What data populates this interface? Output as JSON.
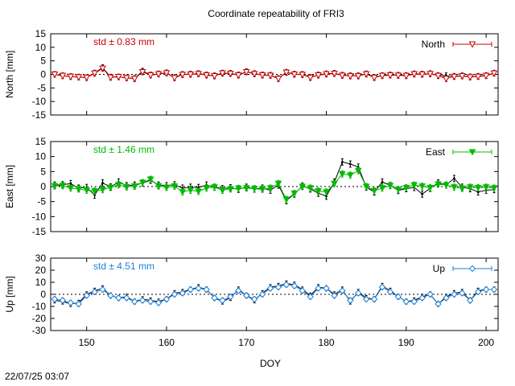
{
  "title": "Coordinate repeatability of FRI3",
  "xlabel": "DOY",
  "timestamp": "22/07/25 03:07",
  "x_ticks": [
    150,
    160,
    170,
    180,
    190,
    200
  ],
  "xlim": [
    145.5,
    201.5
  ],
  "colors": {
    "raw": "#000000",
    "north": "#cc0000",
    "east": "#00bb00",
    "up": "#1f7fd8"
  },
  "chart_data": [
    {
      "type": "line",
      "panel": "north",
      "ylabel": "North [mm]",
      "ylim": [
        -15,
        15
      ],
      "y_ticks": [
        15,
        10,
        5,
        0,
        -5,
        -10,
        -15
      ],
      "legend": "North",
      "legend_position": "top-right",
      "std_label": "std ± 0.83 mm",
      "marker": "triangle-down-open",
      "x": [
        146,
        147,
        148,
        149,
        150,
        151,
        152,
        153,
        154,
        155,
        156,
        157,
        158,
        159,
        160,
        161,
        162,
        163,
        164,
        165,
        166,
        167,
        168,
        169,
        170,
        171,
        172,
        173,
        174,
        175,
        176,
        177,
        178,
        179,
        180,
        181,
        182,
        183,
        184,
        185,
        186,
        187,
        188,
        189,
        190,
        191,
        192,
        193,
        194,
        195,
        196,
        197,
        198,
        199,
        200,
        201
      ],
      "series": [
        {
          "name": "raw",
          "values": [
            0,
            -0.5,
            -0.8,
            -1,
            -1.2,
            0.5,
            2.5,
            -1,
            -0.9,
            -1.3,
            -1.5,
            1.2,
            -0.2,
            0.2,
            0.6,
            -1.2,
            0,
            0.1,
            0.3,
            -0.2,
            -0.5,
            0.5,
            0.4,
            -0.2,
            1,
            0.3,
            -0.2,
            -0.3,
            -1.5,
            0.8,
            0.1,
            0,
            -1.1,
            -0.2,
            0.2,
            0.4,
            -0.3,
            -0.5,
            -0.5,
            0.2,
            -1.1,
            -0.4,
            -0.2,
            -0.3,
            -0.4,
            0.2,
            0.1,
            0.3,
            -0.4,
            -0.5,
            -0.7,
            -0.5,
            -0.9,
            -0.7,
            -0.4,
            0.5
          ]
        },
        {
          "name": "North",
          "values": [
            0,
            -0.5,
            -0.8,
            -1,
            -1.2,
            0.4,
            2.2,
            -1.1,
            -0.9,
            -1.3,
            -1.6,
            0.9,
            -0.3,
            0.1,
            0.5,
            -1.3,
            -0.1,
            0,
            0.2,
            -0.3,
            -0.6,
            0.4,
            0.3,
            -0.3,
            0.9,
            0.2,
            -0.3,
            -0.4,
            -1.6,
            0.7,
            0,
            -0.1,
            -1.2,
            -0.3,
            0.1,
            0.3,
            -0.4,
            -0.6,
            -0.6,
            0.1,
            -1.2,
            -0.5,
            -0.3,
            -0.4,
            -0.5,
            0.1,
            0,
            0.2,
            -0.5,
            -1.6,
            -0.8,
            -0.6,
            -1,
            -0.8,
            -0.5,
            0.4
          ]
        }
      ]
    },
    {
      "type": "line",
      "panel": "east",
      "ylabel": "East [mm]",
      "ylim": [
        -15,
        15
      ],
      "y_ticks": [
        15,
        10,
        5,
        0,
        -5,
        -10,
        -15
      ],
      "legend": "East",
      "legend_position": "top-right",
      "std_label": "std ± 1.46 mm",
      "marker": "triangle-down-filled",
      "x": [
        146,
        147,
        148,
        149,
        150,
        151,
        152,
        153,
        154,
        155,
        156,
        157,
        158,
        159,
        160,
        161,
        162,
        163,
        164,
        165,
        166,
        167,
        168,
        169,
        170,
        171,
        172,
        173,
        174,
        175,
        176,
        177,
        178,
        179,
        180,
        181,
        182,
        183,
        184,
        185,
        186,
        187,
        188,
        189,
        190,
        191,
        192,
        193,
        194,
        195,
        196,
        197,
        198,
        199,
        200,
        201
      ],
      "series": [
        {
          "name": "raw",
          "values": [
            0.5,
            0.6,
            1,
            -0.5,
            -0.3,
            -2.8,
            1.2,
            -0.1,
            1.5,
            0.3,
            0.5,
            1.2,
            2.1,
            0.5,
            0.3,
            0.6,
            -0.5,
            -0.2,
            -0.3,
            0.5,
            -0.2,
            -0.7,
            -0.4,
            -0.9,
            -0.2,
            -0.8,
            -0.5,
            -1.2,
            0.5,
            -4.7,
            -2.5,
            0.2,
            -0.8,
            -2.2,
            -3.2,
            1.5,
            8.2,
            7.5,
            6.5,
            -0.2,
            -1.8,
            1.5,
            0.4,
            -1.3,
            -0.7,
            -0.3,
            -2.5,
            -0.6,
            1.2,
            0.5,
            2.7,
            -0.2,
            -0.7,
            -1.8,
            -1.2,
            -1.0
          ]
        },
        {
          "name": "East",
          "values": [
            0.2,
            0.3,
            -0.5,
            -0.8,
            -1.2,
            -1.5,
            -1,
            -0.3,
            0.6,
            -0.1,
            0.1,
            1.3,
            2.4,
            0.2,
            -0.3,
            0.1,
            -1.8,
            -1.2,
            -1.6,
            -0.5,
            -0.2,
            -1.2,
            -0.8,
            -0.6,
            -0.5,
            -0.7,
            -0.9,
            -0.5,
            1,
            -4.3,
            -2.3,
            0,
            -0.5,
            -1.5,
            -1.8,
            1,
            4.2,
            3.8,
            5.3,
            0,
            -1.4,
            -0.5,
            0.3,
            -1,
            -0.4,
            0.5,
            0.1,
            -0.4,
            0.8,
            0.5,
            -0.2,
            -0.6,
            -0.2,
            -0.4,
            -0.2,
            -0.5
          ]
        }
      ]
    },
    {
      "type": "line",
      "panel": "up",
      "ylabel": "Up [mm]",
      "ylim": [
        -30,
        30
      ],
      "y_ticks": [
        30,
        20,
        10,
        0,
        -10,
        -20,
        -30
      ],
      "legend": "Up",
      "legend_position": "top-right",
      "std_label": "std ± 4.51 mm",
      "marker": "diamond-open",
      "x": [
        146,
        147,
        148,
        149,
        150,
        151,
        152,
        153,
        154,
        155,
        156,
        157,
        158,
        159,
        160,
        161,
        162,
        163,
        164,
        165,
        166,
        167,
        168,
        169,
        170,
        171,
        172,
        173,
        174,
        175,
        176,
        177,
        178,
        179,
        180,
        181,
        182,
        183,
        184,
        185,
        186,
        187,
        188,
        189,
        190,
        191,
        192,
        193,
        194,
        195,
        196,
        197,
        198,
        199,
        200,
        201
      ],
      "series": [
        {
          "name": "raw",
          "values": [
            -5,
            -6,
            -8,
            -7,
            0,
            3,
            5,
            -1,
            -3,
            -2,
            -6,
            -4,
            -5,
            -6,
            -4,
            1,
            2,
            4,
            6,
            4,
            -3,
            -6,
            -3,
            4,
            -1,
            -5,
            1,
            6,
            7,
            9,
            8,
            4,
            -1,
            6,
            5,
            0,
            4,
            -6,
            2,
            -3,
            -4,
            7,
            3,
            -2,
            -6,
            -5,
            -2,
            0,
            -8,
            -2,
            1,
            2,
            -5,
            3,
            4,
            4
          ]
        },
        {
          "name": "Up",
          "values": [
            -4,
            -5,
            -7,
            -8,
            -1,
            2,
            4,
            -1,
            -3,
            -3,
            -6,
            -5,
            -6,
            -7,
            -4,
            0,
            1,
            4,
            5,
            4,
            -3,
            -5,
            -2,
            3,
            -1,
            -4,
            0,
            5,
            6,
            8,
            7,
            3,
            -2,
            5,
            5,
            -1,
            3,
            -5,
            1,
            -4,
            -4,
            6,
            2,
            -2,
            -6,
            -6,
            -3,
            0,
            -8,
            -3,
            0,
            1,
            -5,
            2,
            4,
            4
          ]
        }
      ]
    }
  ]
}
